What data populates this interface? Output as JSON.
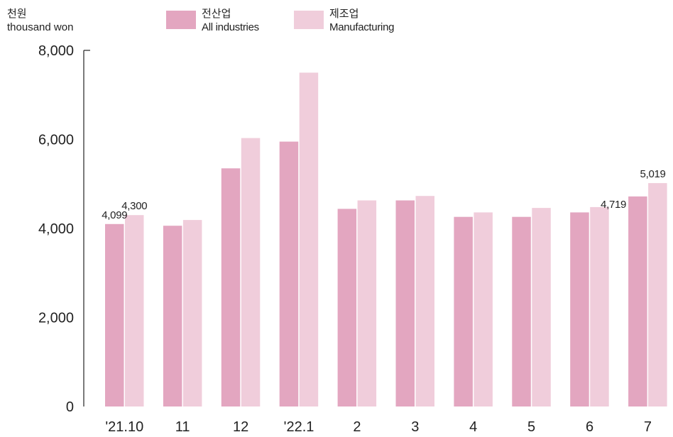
{
  "unit": {
    "ko": "천원",
    "en": "thousand won"
  },
  "legend": [
    {
      "ko": "전산업",
      "en": "All industries",
      "color": "#e3a6c0"
    },
    {
      "ko": "제조업",
      "en": "Manufacturing",
      "color": "#f0cddb"
    }
  ],
  "chart_data": {
    "type": "bar",
    "categories": [
      "'21.10",
      "11",
      "12",
      "'22.1",
      "2",
      "3",
      "4",
      "5",
      "6",
      "7"
    ],
    "series": [
      {
        "name": "All industries",
        "color": "#e3a6c0",
        "values": [
          4099,
          4060,
          5350,
          5950,
          4440,
          4630,
          4260,
          4260,
          4360,
          4719
        ]
      },
      {
        "name": "Manufacturing",
        "color": "#f0cddb",
        "values": [
          4300,
          4190,
          6030,
          7500,
          4630,
          4730,
          4360,
          4460,
          4480,
          5019
        ]
      }
    ],
    "ylim": [
      0,
      8000
    ],
    "yticks": [
      "0",
      "2,000",
      "4,000",
      "6,000",
      "8,000"
    ],
    "data_labels": [
      {
        "series": 0,
        "index": 0,
        "text": "4,099"
      },
      {
        "series": 1,
        "index": 0,
        "text": "4,300"
      },
      {
        "series": 0,
        "index": 9,
        "text": "4,719"
      },
      {
        "series": 1,
        "index": 9,
        "text": "5,019"
      }
    ],
    "grid": false,
    "legend_position": "top"
  }
}
